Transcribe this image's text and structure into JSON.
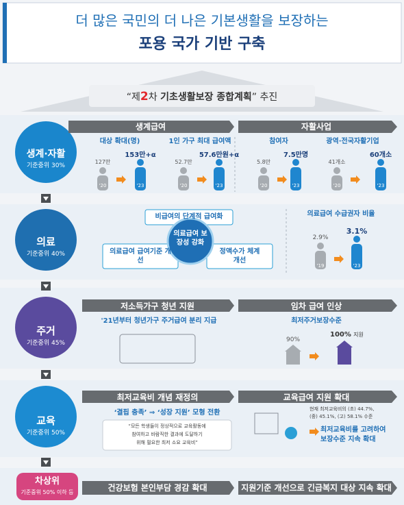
{
  "header": {
    "title_line1": "더 많은 국민의 더 나은 기본생활을 보장하는",
    "title_line2": "포용 국가 기반 구축"
  },
  "plan": {
    "parts": [
      "“제",
      "2",
      "차 ",
      "기초생활보장 종합계획",
      "”",
      " 추진"
    ]
  },
  "sections": [
    {
      "badge": "생계·자활",
      "criterion": "기준중위 30%",
      "headers": [
        "생계급여",
        "자활사업"
      ],
      "items": [
        {
          "label": "대상 확대(명)",
          "before": "127만",
          "before_year": "'20",
          "after": "153만+α",
          "after_year": "'23"
        },
        {
          "label": "1인 가구 최대 급여액",
          "before": "52.7만",
          "before_year": "'20",
          "after": "57.6만원+α",
          "after_year": "'23"
        },
        {
          "label": "참여자",
          "before": "5.8만",
          "before_year": "'20",
          "after": "7.5만명",
          "after_year": "'23"
        },
        {
          "label": "광역·전국자활기업",
          "before": "41개소",
          "before_year": "'20",
          "after": "60개소",
          "after_year": "'23"
        }
      ]
    },
    {
      "badge": "의료",
      "criterion": "기준중위 40%",
      "center": "의료급여 보장성 강화",
      "boxes": [
        "비급여의 단계적 급여화",
        "의료급여 급여기준 개선",
        "정액수가 체계 개선"
      ],
      "ratio": {
        "label": "의료급여 수급권자 비율",
        "before": "2.9%",
        "before_year": "'19",
        "after": "3.1%",
        "after_year": "'23"
      }
    },
    {
      "badge": "주거",
      "criterion": "기준중위 45%",
      "headers": [
        "저소득가구 청년 지원",
        "임차 급여 인상"
      ],
      "left_text": "'21년부터 청년가구 주거급여 분리 지급",
      "right": {
        "label": "최저주거보장수준",
        "before": "90%",
        "after": "100%",
        "after_note": "지원"
      }
    },
    {
      "badge": "교육",
      "criterion": "기준중위 50%",
      "headers": [
        "최저교육비 개념 재정의",
        "교육급여 지원 확대"
      ],
      "left_text": "‘결핍 충족’ ⇒ ‘성장 지원’ 모형 전환",
      "quote": [
        "“모든 학생들이 정상적으로 교육활동에",
        "참여하고 바람직한 결과에 도달하기",
        "위해 필요한 최저 소요 교육비”"
      ],
      "current": [
        "현재 최저교육비의 (초) 44.7%,",
        "(중) 45.1%, (고) 58.1% 수준"
      ],
      "goal": [
        "최저교육비를 고려하여",
        "보장수준 지속 확대"
      ]
    },
    {
      "badge": "차상위",
      "criterion": "기준중위 50% 이하 등",
      "bars": [
        "건강보험 본인부담 경감 확대",
        "지원기준 개선으로 긴급복지 대상 지속 확대"
      ]
    }
  ]
}
